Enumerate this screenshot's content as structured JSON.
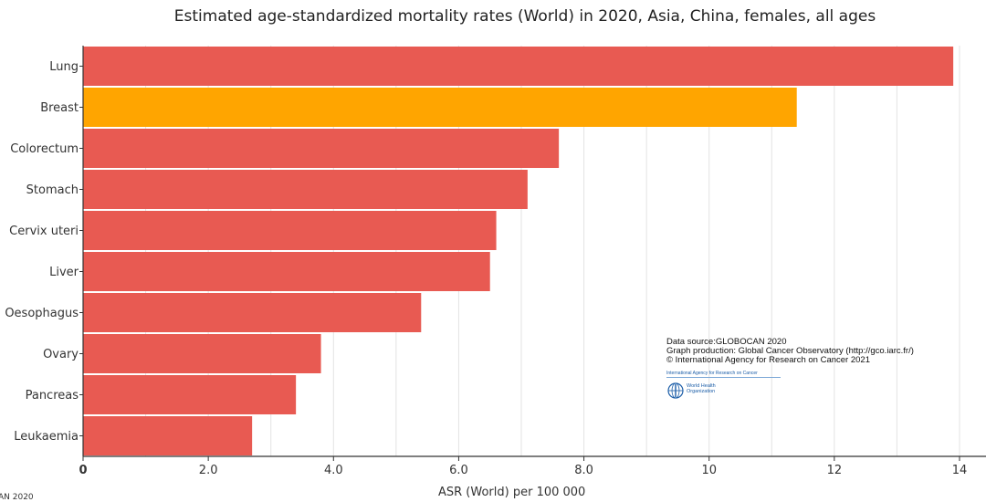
{
  "chart_data": {
    "type": "bar",
    "orientation": "horizontal",
    "title": "Estimated age-standardized mortality rates (World) in 2020, Asia, China, females, all ages",
    "xlabel": "ASR (World) per 100 000",
    "ylabel": "",
    "xlim": [
      0,
      14.5
    ],
    "ticks": [
      {
        "value": 0,
        "label": "0"
      },
      {
        "value": 2,
        "label": "2.0"
      },
      {
        "value": 4,
        "label": "4.0"
      },
      {
        "value": 6,
        "label": "6.0"
      },
      {
        "value": 8,
        "label": "8.0"
      },
      {
        "value": 10,
        "label": "10"
      },
      {
        "value": 12,
        "label": "12"
      },
      {
        "value": 14,
        "label": "14"
      }
    ],
    "grid_values": [
      0,
      1,
      2,
      3,
      4,
      5,
      6,
      7,
      8,
      9,
      10,
      11,
      12,
      13,
      14
    ],
    "categories": [
      "Lung",
      "Breast",
      "Colorectum",
      "Stomach",
      "Cervix uteri",
      "Liver",
      "Oesophagus",
      "Ovary",
      "Pancreas",
      "Leukaemia"
    ],
    "values": [
      13.9,
      11.4,
      7.6,
      7.1,
      6.6,
      6.5,
      5.4,
      3.8,
      3.4,
      2.7
    ],
    "colors": [
      "#e85a52",
      "#ffa500",
      "#e85a52",
      "#e85a52",
      "#e85a52",
      "#e85a52",
      "#e85a52",
      "#e85a52",
      "#e85a52",
      "#e85a52"
    ],
    "grid": true
  },
  "source": {
    "line1": "Data source:GLOBOCAN 2020",
    "line2": "Graph production: Global Cancer Observatory (http://gco.iarc.fr/)",
    "line3": "© International Agency for Research on Cancer 2021",
    "iarc": "International Agency for Research on Cancer",
    "who_line1": "World Health",
    "who_line2": "Organization"
  },
  "footer_cut_text": "AN 2020"
}
